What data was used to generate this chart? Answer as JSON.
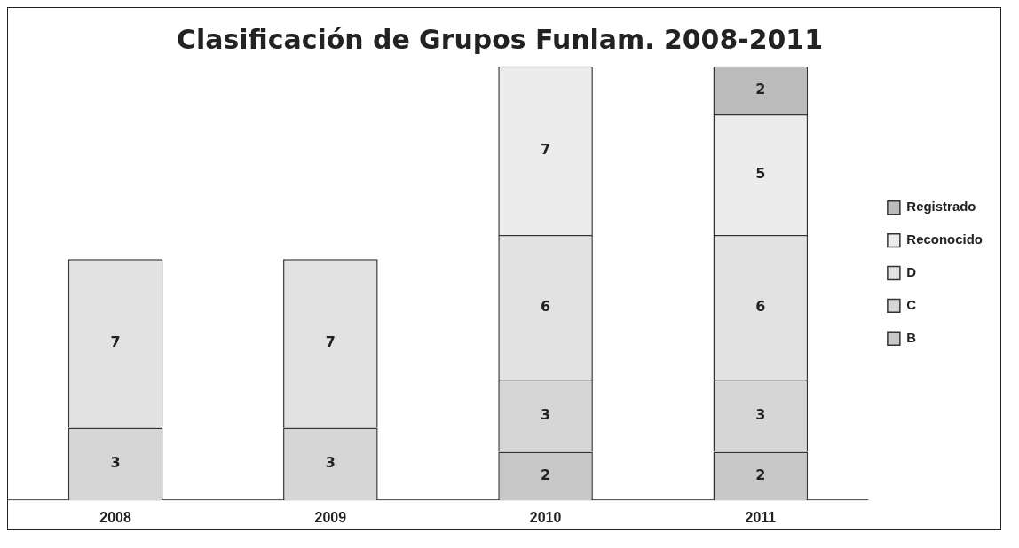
{
  "chart_data": {
    "type": "bar",
    "title": "Clasificación de Grupos Funlam. 2008-2011",
    "categories": [
      "2008",
      "2009",
      "2010",
      "2011"
    ],
    "stacked": true,
    "data_labels": true,
    "grid": false,
    "legend": "right",
    "tick_labels": "x",
    "series": [
      {
        "name": "B",
        "color": "#c8c8c8",
        "values": [
          null,
          null,
          2,
          2
        ]
      },
      {
        "name": "C",
        "color": "#d6d6d6",
        "values": [
          3,
          3,
          3,
          3
        ]
      },
      {
        "name": "D",
        "color": "#e2e2e2",
        "values": [
          7,
          7,
          6,
          6
        ]
      },
      {
        "name": "Reconocido",
        "color": "#ececec",
        "values": [
          null,
          null,
          7,
          5
        ]
      },
      {
        "name": "Registrado",
        "color": "#bcbcbc",
        "values": [
          null,
          null,
          null,
          2
        ]
      }
    ]
  }
}
